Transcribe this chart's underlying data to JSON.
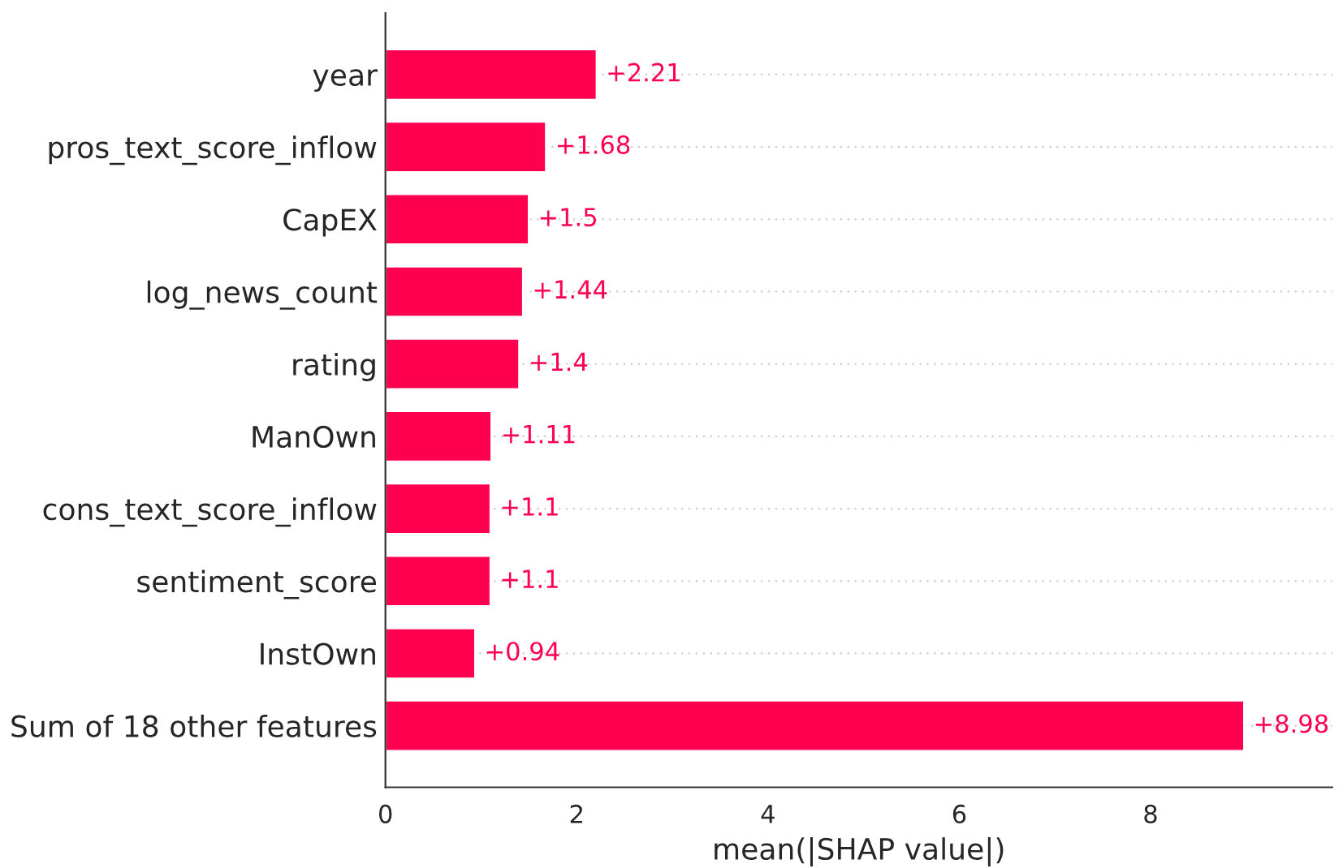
{
  "chart_data": {
    "type": "bar",
    "orientation": "horizontal",
    "xlabel": "mean(|SHAP value|)",
    "categories": [
      "year",
      "pros_text_score_inflow",
      "CapEX",
      "log_news_count",
      "rating",
      "ManOwn",
      "cons_text_score_inflow",
      "sentiment_score",
      "InstOwn",
      "Sum of 18 other features"
    ],
    "values": [
      2.21,
      1.68,
      1.5,
      1.44,
      1.4,
      1.11,
      1.1,
      1.1,
      0.94,
      8.98
    ],
    "value_labels": [
      "+2.21",
      "+1.68",
      "+1.5",
      "+1.44",
      "+1.4",
      "+1.11",
      "+1.1",
      "+1.1",
      "+0.94",
      "+8.98"
    ],
    "color": "#ff0051",
    "xlim": [
      0,
      9.9
    ],
    "xticks": [
      0,
      2,
      4,
      6,
      8
    ],
    "grid": "y",
    "legend": false
  }
}
